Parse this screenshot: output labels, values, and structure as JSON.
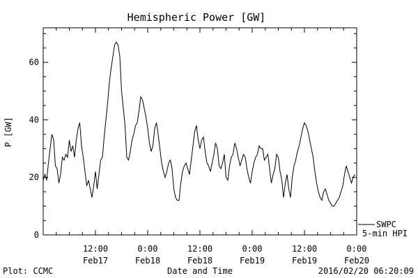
{
  "chart_data": {
    "type": "line",
    "title": "Hemispheric Power [GW]",
    "ylabel": "P [GW]",
    "xlabel": "Date and Time",
    "ylim": [
      0,
      72
    ],
    "xlim": [
      0,
      72
    ],
    "yticks": [
      0,
      20,
      40,
      60
    ],
    "x_axis_note": "x in hours, 0 = 2016/02/17 00:00",
    "xticks": [
      {
        "x": 12,
        "top": "12:00",
        "bottom": "Feb17"
      },
      {
        "x": 24,
        "top": "0:00",
        "bottom": "Feb18"
      },
      {
        "x": 36,
        "top": "12:00",
        "bottom": "Feb18"
      },
      {
        "x": 48,
        "top": "0:00",
        "bottom": "Feb19"
      },
      {
        "x": 60,
        "top": "12:00",
        "bottom": "Feb19"
      },
      {
        "x": 72,
        "top": "0:00",
        "bottom": "Feb20"
      }
    ],
    "series": [
      {
        "name": "SWPC",
        "color": "#000000",
        "points": [
          [
            0,
            19
          ],
          [
            0.4,
            21
          ],
          [
            0.8,
            19
          ],
          [
            1.2,
            25
          ],
          [
            1.6,
            30
          ],
          [
            2.0,
            35
          ],
          [
            2.4,
            33
          ],
          [
            2.8,
            24
          ],
          [
            3.2,
            23
          ],
          [
            3.6,
            18
          ],
          [
            4.0,
            21
          ],
          [
            4.4,
            27
          ],
          [
            4.8,
            26
          ],
          [
            5.2,
            28
          ],
          [
            5.6,
            27
          ],
          [
            6.0,
            33
          ],
          [
            6.4,
            29
          ],
          [
            6.8,
            31
          ],
          [
            7.2,
            27
          ],
          [
            7.6,
            33
          ],
          [
            8.0,
            37
          ],
          [
            8.4,
            39
          ],
          [
            8.8,
            31
          ],
          [
            9.2,
            27
          ],
          [
            9.6,
            22
          ],
          [
            10.0,
            17
          ],
          [
            10.4,
            19
          ],
          [
            10.8,
            16
          ],
          [
            11.2,
            13
          ],
          [
            11.6,
            17
          ],
          [
            12.0,
            22
          ],
          [
            12.4,
            16
          ],
          [
            12.8,
            21
          ],
          [
            13.2,
            26
          ],
          [
            13.6,
            27
          ],
          [
            14.0,
            34
          ],
          [
            14.4,
            40
          ],
          [
            14.8,
            46
          ],
          [
            15.2,
            53
          ],
          [
            15.6,
            58
          ],
          [
            16.0,
            62
          ],
          [
            16.4,
            66
          ],
          [
            16.8,
            67
          ],
          [
            17.2,
            66
          ],
          [
            17.6,
            62
          ],
          [
            18.0,
            50
          ],
          [
            18.4,
            44
          ],
          [
            18.8,
            38
          ],
          [
            19.2,
            27
          ],
          [
            19.6,
            26
          ],
          [
            20.0,
            29
          ],
          [
            20.4,
            33
          ],
          [
            20.8,
            35
          ],
          [
            21.2,
            38
          ],
          [
            21.6,
            39
          ],
          [
            22.0,
            43
          ],
          [
            22.4,
            48
          ],
          [
            22.8,
            47
          ],
          [
            23.2,
            44
          ],
          [
            23.6,
            41
          ],
          [
            24.0,
            37
          ],
          [
            24.4,
            32
          ],
          [
            24.8,
            29
          ],
          [
            25.2,
            31
          ],
          [
            25.6,
            37
          ],
          [
            26.0,
            39
          ],
          [
            26.4,
            35
          ],
          [
            26.8,
            30
          ],
          [
            27.2,
            25
          ],
          [
            27.6,
            22
          ],
          [
            28.0,
            20
          ],
          [
            28.4,
            22
          ],
          [
            28.8,
            25
          ],
          [
            29.2,
            26
          ],
          [
            29.6,
            23
          ],
          [
            30.0,
            16
          ],
          [
            30.4,
            13
          ],
          [
            30.8,
            12
          ],
          [
            31.2,
            12
          ],
          [
            31.6,
            18
          ],
          [
            32.0,
            22
          ],
          [
            32.4,
            24
          ],
          [
            32.8,
            25
          ],
          [
            33.2,
            23
          ],
          [
            33.6,
            21
          ],
          [
            34.0,
            26
          ],
          [
            34.4,
            31
          ],
          [
            34.8,
            36
          ],
          [
            35.2,
            38
          ],
          [
            35.6,
            33
          ],
          [
            36.0,
            30
          ],
          [
            36.4,
            33
          ],
          [
            36.8,
            34
          ],
          [
            37.2,
            29
          ],
          [
            37.6,
            25
          ],
          [
            38.0,
            24
          ],
          [
            38.4,
            22
          ],
          [
            38.8,
            25
          ],
          [
            39.2,
            28
          ],
          [
            39.6,
            32
          ],
          [
            40.0,
            30
          ],
          [
            40.4,
            24
          ],
          [
            40.8,
            23
          ],
          [
            41.2,
            25
          ],
          [
            41.6,
            28
          ],
          [
            42.0,
            20
          ],
          [
            42.4,
            19
          ],
          [
            42.8,
            24
          ],
          [
            43.2,
            27
          ],
          [
            43.6,
            28
          ],
          [
            44.0,
            32
          ],
          [
            44.4,
            30
          ],
          [
            44.8,
            27
          ],
          [
            45.2,
            24
          ],
          [
            45.6,
            26
          ],
          [
            46.0,
            28
          ],
          [
            46.4,
            27
          ],
          [
            46.8,
            23
          ],
          [
            47.2,
            20
          ],
          [
            47.6,
            18
          ],
          [
            48.0,
            22
          ],
          [
            48.4,
            25
          ],
          [
            48.8,
            27
          ],
          [
            49.2,
            28
          ],
          [
            49.6,
            31
          ],
          [
            50.0,
            30
          ],
          [
            50.4,
            30
          ],
          [
            50.8,
            26
          ],
          [
            51.2,
            27
          ],
          [
            51.6,
            28
          ],
          [
            52.0,
            23
          ],
          [
            52.4,
            18
          ],
          [
            52.8,
            21
          ],
          [
            53.2,
            23
          ],
          [
            53.6,
            28
          ],
          [
            54.0,
            27
          ],
          [
            54.4,
            22
          ],
          [
            54.8,
            19
          ],
          [
            55.2,
            13
          ],
          [
            55.6,
            18
          ],
          [
            56.0,
            21
          ],
          [
            56.4,
            16
          ],
          [
            56.8,
            13
          ],
          [
            57.2,
            20
          ],
          [
            57.6,
            24
          ],
          [
            58.0,
            26
          ],
          [
            58.4,
            29
          ],
          [
            58.8,
            31
          ],
          [
            59.2,
            34
          ],
          [
            59.6,
            37
          ],
          [
            60.0,
            39
          ],
          [
            60.4,
            38
          ],
          [
            60.8,
            36
          ],
          [
            61.2,
            33
          ],
          [
            61.6,
            30
          ],
          [
            62.0,
            27
          ],
          [
            62.4,
            22
          ],
          [
            62.8,
            18
          ],
          [
            63.2,
            15
          ],
          [
            63.6,
            13
          ],
          [
            64.0,
            12
          ],
          [
            64.4,
            15
          ],
          [
            64.8,
            16
          ],
          [
            65.2,
            14
          ],
          [
            65.6,
            12
          ],
          [
            66.0,
            11
          ],
          [
            66.4,
            10
          ],
          [
            66.8,
            10
          ],
          [
            67.2,
            11
          ],
          [
            67.6,
            12
          ],
          [
            68.0,
            13
          ],
          [
            68.4,
            15
          ],
          [
            68.8,
            17
          ],
          [
            69.2,
            21
          ],
          [
            69.6,
            24
          ],
          [
            70.0,
            22
          ],
          [
            70.4,
            20
          ],
          [
            70.8,
            18
          ],
          [
            71.2,
            20
          ],
          [
            71.6,
            21
          ]
        ]
      }
    ],
    "legend": {
      "position": "right of plot, bottom",
      "entries": [
        {
          "label": "SWPC",
          "style": "line"
        },
        {
          "label": "5-min HPI",
          "style": "none"
        }
      ]
    },
    "grid": false
  },
  "footer": {
    "left": "Plot: CCMC",
    "right": "2016/02/20 06:20:09"
  }
}
